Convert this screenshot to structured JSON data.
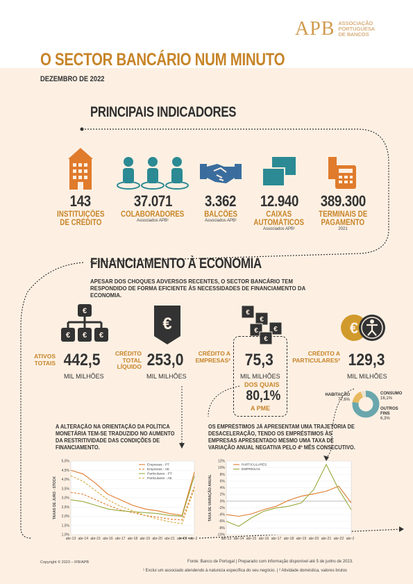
{
  "header": {
    "logo_mark": "APB",
    "logo_lines": [
      "ASSOCIAÇÃO",
      "PORTUGUESA",
      "DE BANCOS"
    ],
    "title": "O SECTOR BANCÁRIO NUM MINUTO",
    "date": "DEZEMBRO DE 2022"
  },
  "indicators": {
    "title": "PRINCIPAIS INDICADORES",
    "items": [
      {
        "value": "143",
        "label1": "INSTITUIÇÕES",
        "label2": "DE CRÉDITO",
        "note": "",
        "icon": "building-icon"
      },
      {
        "value": "37.071",
        "label1": "COLABORADORES",
        "label2": "",
        "note": "Associados APB¹",
        "icon": "people-icon"
      },
      {
        "value": "3.362",
        "label1": "BALCÕES",
        "label2": "",
        "note": "Associados APB¹",
        "icon": "handshake-icon"
      },
      {
        "value": "12.940",
        "label1": "CAIXAS",
        "label2": "AUTOMÁTICOS",
        "note": "Associados APB¹",
        "icon": "atm-icon"
      },
      {
        "value": "389.300",
        "label1": "TERMINAIS DE",
        "label2": "PAGAMENTO",
        "note": "2021",
        "icon": "payment-terminal-icon"
      }
    ]
  },
  "financing": {
    "title": "FINANCIAMENTO À ECONOMIA",
    "intro": "APESAR DOS CHOQUES ADVERSOS RECENTES, O SECTOR BANCÁRIO TEM RESPONDIDO DE FORMA EFICIENTE ÀS NECESSIDADES DE FINANCIAMENTO DA ECONOMIA.",
    "assets": {
      "label1": "ATIVOS",
      "label2": "TOTAIS",
      "value": "442,5",
      "unit": "MIL MILHÕES"
    },
    "net_credit": {
      "label1": "CRÉDITO",
      "label2": "TOTAL",
      "label3": "LÍQUIDO",
      "value": "253,0",
      "unit": "MIL MILHÕES"
    },
    "company_credit": {
      "label1": "CRÉDITO A",
      "label2": "EMPRESAS²",
      "value": "75,3",
      "unit": "MIL MILHÕES",
      "of_which": "DOS QUAIS",
      "pme_value": "80,1%",
      "pme_label": "A PME"
    },
    "private_credit": {
      "label1": "CRÉDITO A",
      "label2": "PARTICULARES²",
      "value": "129,3",
      "unit": "MIL MILHÕES"
    },
    "donut": {
      "segments": [
        {
          "name": "HABITAÇÃO",
          "value": "77,6%",
          "pct": 77.6,
          "color": "#6aa6ad"
        },
        {
          "name": "CONSUMO",
          "value": "16,1%",
          "pct": 16.1,
          "color": "#e8b95e"
        },
        {
          "name": "OUTROS FINS",
          "value": "6,3%",
          "pct": 6.3,
          "color": "#ede2cf"
        }
      ]
    }
  },
  "text_left": "A ALTERAÇÃO NA ORIENTAÇÃO DA POLÍTICA MONETÁRIA TEM-SE TRADUZIDO NO AUMENTO DA RESTRITIVIDADE DAS CONDIÇÕES DE FINANCIAMENTO.",
  "text_right": "OS EMPRÉSTIMOS JÁ APRESENTAM UMA TRAJETÓRIA DE DESACELERAÇÃO, TENDO OS EMPRÉSTIMOS ÀS EMPRESAS APRESENTADO MESMO UMA TAXA DE VARIAÇÃO ANUAL NEGATIVA PELO 4º MÊS CONSECUTIVO.",
  "chart_data": [
    {
      "type": "line",
      "ylabel": "TAXAS DE JURO - STOCK",
      "ylim": [
        1.0,
        5.0
      ],
      "yticks": [
        "1,0%",
        "1,5%",
        "2,0%",
        "2,5%",
        "3,0%",
        "3,5%",
        "4,0%",
        "4,5%",
        "5,0%"
      ],
      "x": [
        "abr-13",
        "abr-14",
        "abr-15",
        "abr-16",
        "abr-17",
        "abr-18",
        "abr-19",
        "abr-20",
        "abr-21",
        "abr-22",
        "abr-23"
      ],
      "series": [
        {
          "name": "Empresas - PT",
          "color": "#e07b2c",
          "dash": "",
          "values": [
            4.5,
            4.3,
            3.8,
            3.2,
            2.9,
            2.6,
            2.4,
            2.3,
            2.15,
            2.05,
            4.4
          ]
        },
        {
          "name": "Empresas - AE",
          "color": "#e07b2c",
          "dash": "3,2",
          "values": [
            3.3,
            3.2,
            2.9,
            2.6,
            2.35,
            2.2,
            2.05,
            1.95,
            1.85,
            1.8,
            3.6
          ]
        },
        {
          "name": "Particulares - PT",
          "color": "#9aa83a",
          "dash": "",
          "values": [
            2.9,
            2.8,
            2.6,
            2.4,
            2.3,
            2.25,
            2.2,
            2.15,
            2.05,
            2.0,
            4.2
          ]
        },
        {
          "name": "Particulares - AE",
          "color": "#d8a63a",
          "dash": "3,2",
          "values": [
            4.2,
            3.9,
            3.4,
            2.9,
            2.55,
            2.3,
            2.05,
            1.85,
            1.7,
            1.6,
            3.5
          ]
        }
      ]
    },
    {
      "type": "line",
      "ylabel": "TAXA DE VARIAÇÃO ANUAL",
      "ylim": [
        -10,
        12
      ],
      "yticks": [
        "-10%",
        "-8%",
        "-6%",
        "-4%",
        "-2%",
        "0%",
        "2%",
        "4%",
        "6%",
        "8%",
        "10%",
        "12%"
      ],
      "x": [
        "abr-13",
        "abr-14",
        "abr-15",
        "abr-16",
        "abr-17",
        "abr-18",
        "abr-19",
        "abr-20",
        "abr-21",
        "abr-22",
        "abr-23"
      ],
      "series": [
        {
          "name": "PARTICULARES",
          "color": "#e07b2c",
          "values": [
            -4,
            -4.5,
            -3.8,
            -2.5,
            -1.5,
            0.3,
            1.5,
            2.2,
            3.0,
            4.5,
            -0.5
          ]
        },
        {
          "name": "EMPRESAS",
          "color": "#9aa83a",
          "values": [
            -6,
            -7.5,
            -5,
            -3,
            -2,
            -1.5,
            -0.5,
            3.5,
            11,
            3.5,
            -2.5
          ]
        }
      ]
    }
  ],
  "footer": {
    "copyright": "Copyright © 2023 – IFB/APB",
    "source": "Fonte: Banco de Portugal   |   Preparado com informação disponível até 5 de junho de 2023.",
    "notes": "¹ Exclui um associado atendendo à natureza específica do seu negócio.   |   ² Atividade doméstica, valores brutos"
  }
}
